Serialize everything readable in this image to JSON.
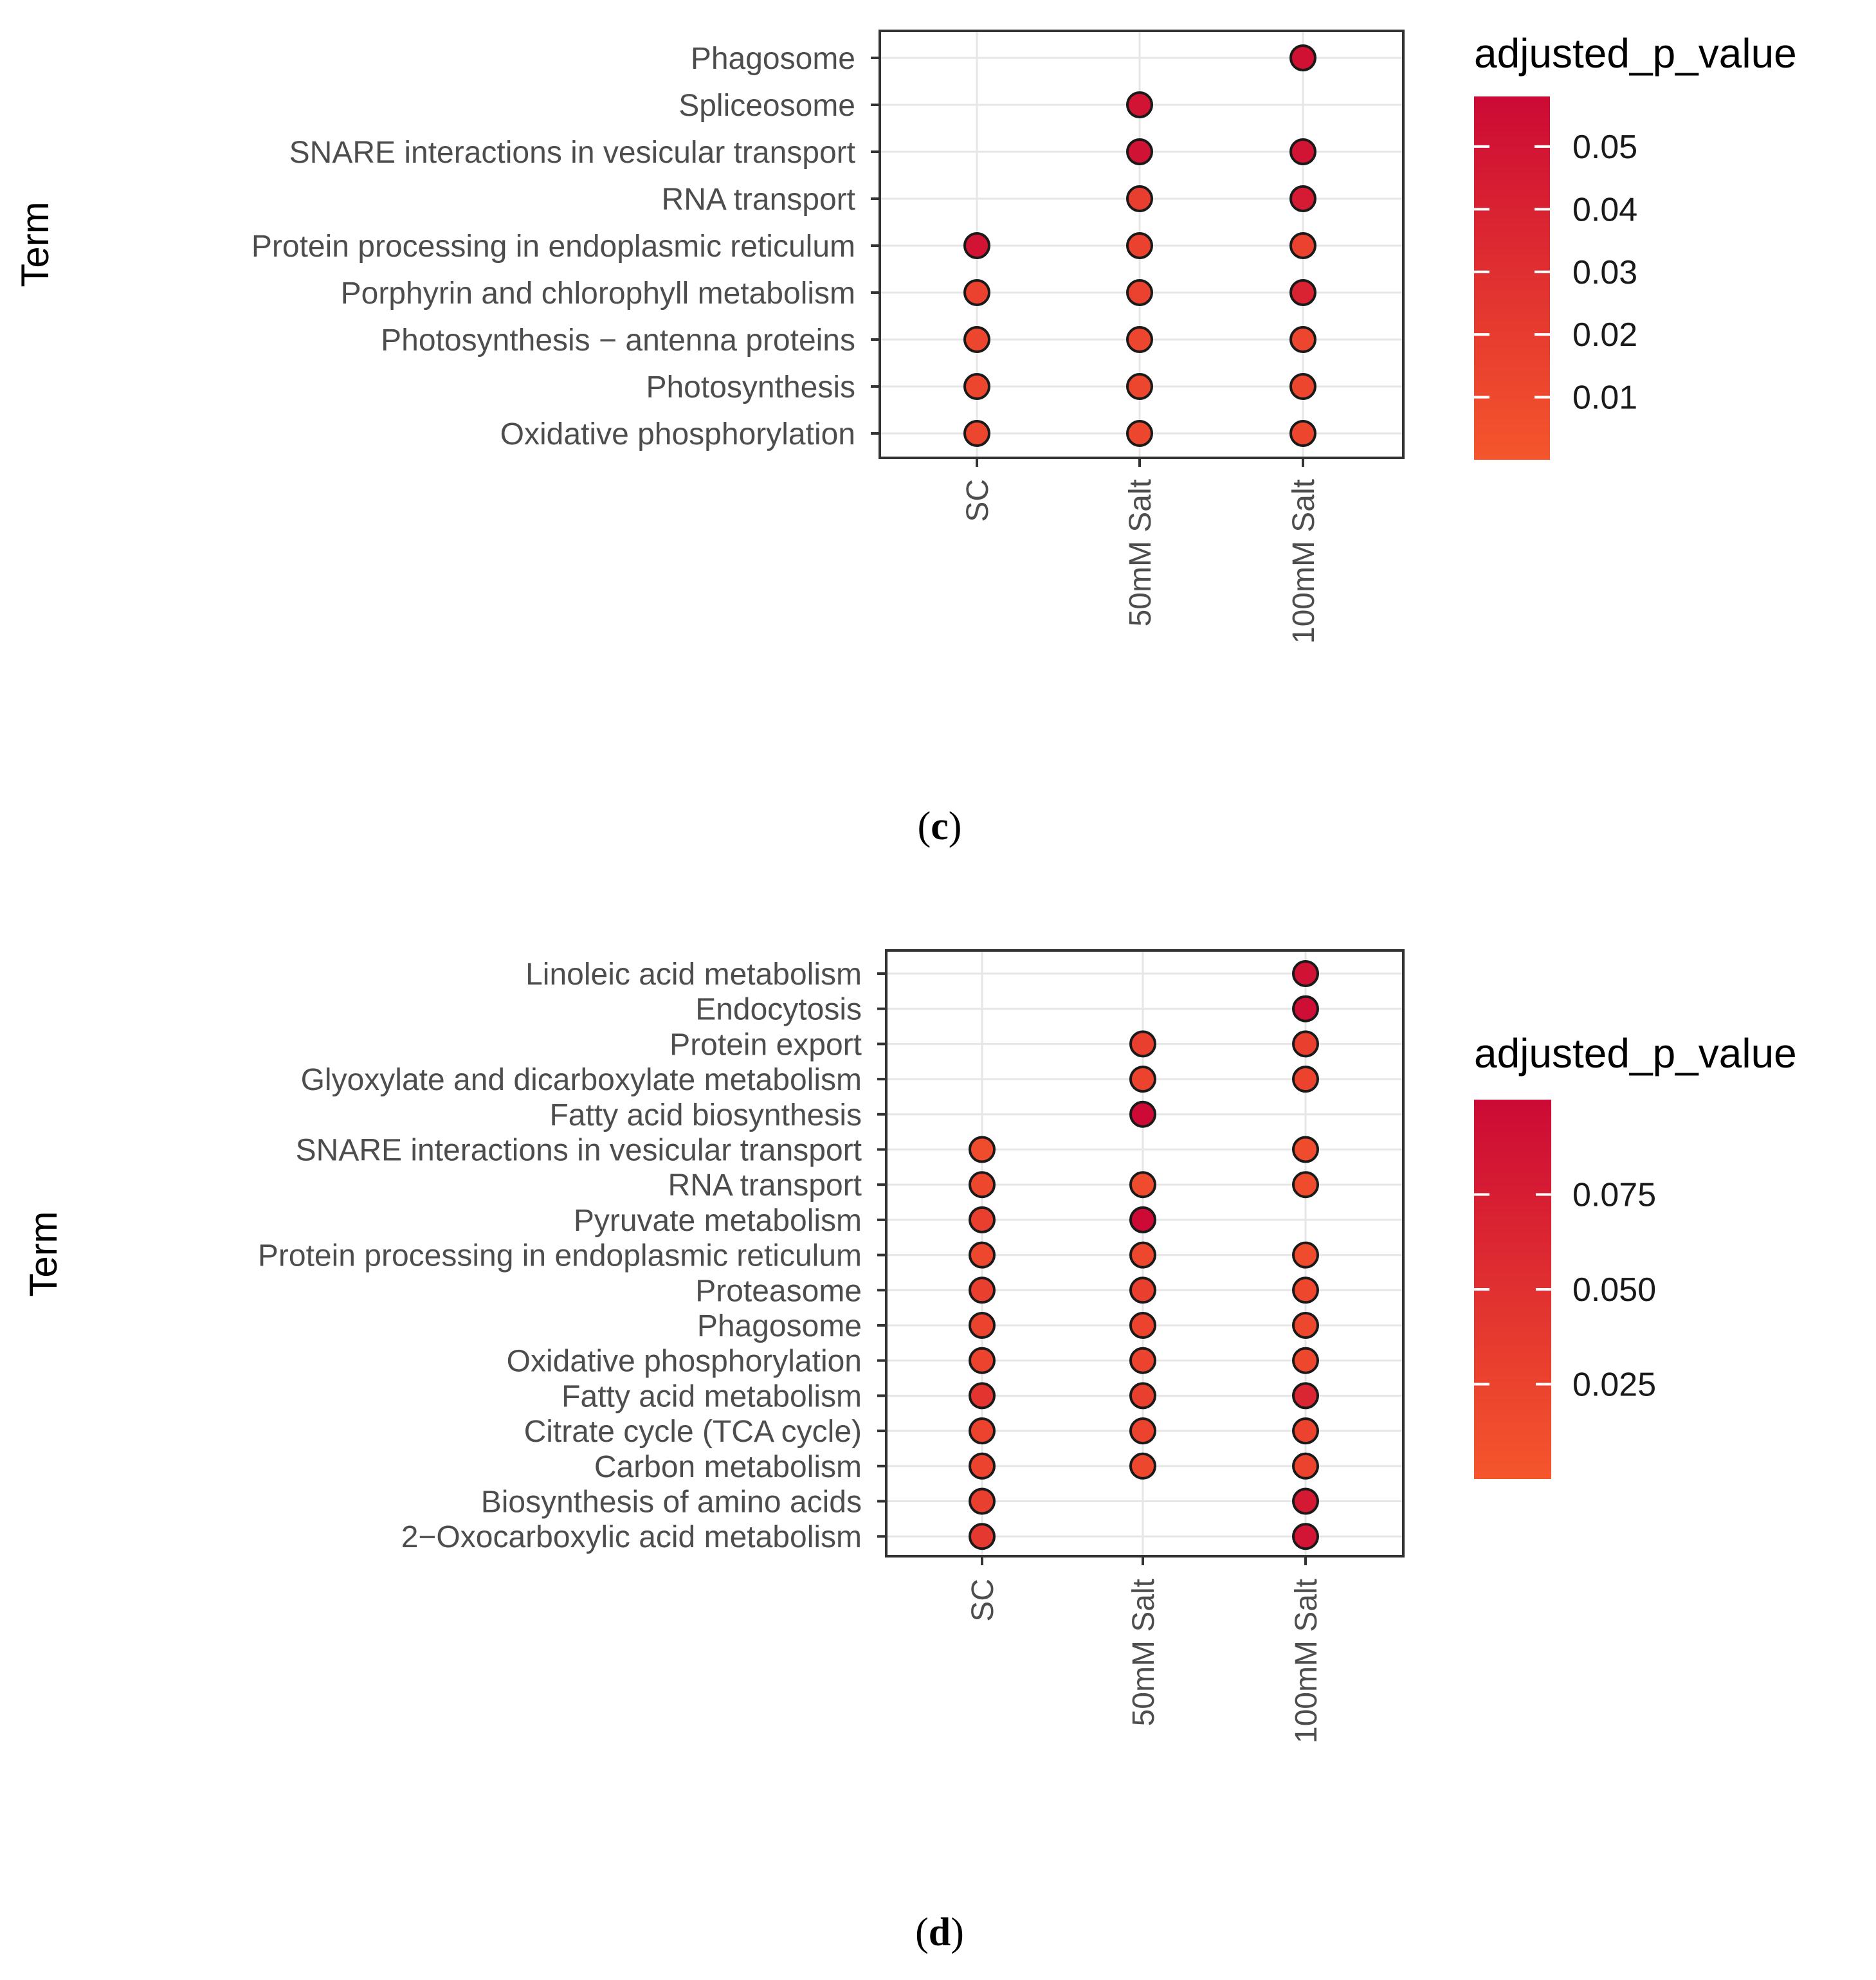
{
  "chart_data": [
    {
      "type": "scatter",
      "panel_label": "(c)",
      "panel_letter": "c",
      "ylabel": "Term",
      "categories_x": [
        "SC",
        "50mM Salt",
        "100mM Salt"
      ],
      "categories_y": [
        "Phagosome",
        "Spliceosome",
        "SNARE interactions in vesicular transport",
        "RNA transport",
        "Protein processing in endoplasmic reticulum",
        "Porphyrin and chlorophyll metabolism",
        "Photosynthesis − antenna proteins",
        "Photosynthesis",
        "Oxidative phosphorylation"
      ],
      "legend": {
        "title": "adjusted_p_value",
        "ticks": [
          0.05,
          0.04,
          0.03,
          0.02,
          0.01
        ],
        "tick_labels": [
          "0.05",
          "0.04",
          "0.03",
          "0.02",
          "0.01"
        ],
        "range": [
          0.0,
          0.058
        ],
        "color_low": "#f5562c",
        "color_high": "#cc0a35"
      },
      "points": [
        {
          "term": "Phagosome",
          "group": "100mM Salt",
          "p": 0.053
        },
        {
          "term": "Spliceosome",
          "group": "50mM Salt",
          "p": 0.05
        },
        {
          "term": "SNARE interactions in vesicular transport",
          "group": "50mM Salt",
          "p": 0.052
        },
        {
          "term": "SNARE interactions in vesicular transport",
          "group": "100mM Salt",
          "p": 0.05
        },
        {
          "term": "RNA transport",
          "group": "50mM Salt",
          "p": 0.018
        },
        {
          "term": "RNA transport",
          "group": "100mM Salt",
          "p": 0.045
        },
        {
          "term": "Protein processing in endoplasmic reticulum",
          "group": "SC",
          "p": 0.05
        },
        {
          "term": "Protein processing in endoplasmic reticulum",
          "group": "50mM Salt",
          "p": 0.015
        },
        {
          "term": "Protein processing in endoplasmic reticulum",
          "group": "100mM Salt",
          "p": 0.015
        },
        {
          "term": "Porphyrin and chlorophyll metabolism",
          "group": "SC",
          "p": 0.015
        },
        {
          "term": "Porphyrin and chlorophyll metabolism",
          "group": "50mM Salt",
          "p": 0.015
        },
        {
          "term": "Porphyrin and chlorophyll metabolism",
          "group": "100mM Salt",
          "p": 0.04
        },
        {
          "term": "Photosynthesis − antenna proteins",
          "group": "SC",
          "p": 0.012
        },
        {
          "term": "Photosynthesis − antenna proteins",
          "group": "50mM Salt",
          "p": 0.012
        },
        {
          "term": "Photosynthesis − antenna proteins",
          "group": "100mM Salt",
          "p": 0.012
        },
        {
          "term": "Photosynthesis",
          "group": "SC",
          "p": 0.012
        },
        {
          "term": "Photosynthesis",
          "group": "50mM Salt",
          "p": 0.012
        },
        {
          "term": "Photosynthesis",
          "group": "100mM Salt",
          "p": 0.012
        },
        {
          "term": "Oxidative phosphorylation",
          "group": "SC",
          "p": 0.012
        },
        {
          "term": "Oxidative phosphorylation",
          "group": "50mM Salt",
          "p": 0.012
        },
        {
          "term": "Oxidative phosphorylation",
          "group": "100mM Salt",
          "p": 0.012
        }
      ]
    },
    {
      "type": "scatter",
      "panel_label": "(d)",
      "panel_letter": "d",
      "ylabel": "Term",
      "categories_x": [
        "SC",
        "50mM Salt",
        "100mM Salt"
      ],
      "categories_y": [
        "Linoleic acid metabolism",
        "Endocytosis",
        "Protein export",
        "Glyoxylate and dicarboxylate metabolism",
        "Fatty acid biosynthesis",
        "SNARE interactions in vesicular transport",
        "RNA transport",
        "Pyruvate metabolism",
        "Protein processing in endoplasmic reticulum",
        "Proteasome",
        "Phagosome",
        "Oxidative phosphorylation",
        "Fatty acid metabolism",
        "Citrate cycle (TCA cycle)",
        "Carbon metabolism",
        "Biosynthesis of amino acids",
        "2−Oxocarboxylic acid metabolism"
      ],
      "legend": {
        "title": "adjusted_p_value",
        "ticks": [
          0.075,
          0.05,
          0.025
        ],
        "tick_labels": [
          "0.075",
          "0.050",
          "0.025"
        ],
        "range": [
          0.0,
          0.1
        ],
        "color_low": "#f5562c",
        "color_high": "#cc0a35"
      },
      "points": [
        {
          "term": "Linoleic acid metabolism",
          "group": "100mM Salt",
          "p": 0.09
        },
        {
          "term": "Endocytosis",
          "group": "100mM Salt",
          "p": 0.095
        },
        {
          "term": "Protein export",
          "group": "50mM Salt",
          "p": 0.03
        },
        {
          "term": "Protein export",
          "group": "100mM Salt",
          "p": 0.03
        },
        {
          "term": "Glyoxylate and dicarboxylate metabolism",
          "group": "50mM Salt",
          "p": 0.025
        },
        {
          "term": "Glyoxylate and dicarboxylate metabolism",
          "group": "100mM Salt",
          "p": 0.025
        },
        {
          "term": "Fatty acid biosynthesis",
          "group": "50mM Salt",
          "p": 0.1
        },
        {
          "term": "SNARE interactions in vesicular transport",
          "group": "SC",
          "p": 0.015
        },
        {
          "term": "SNARE interactions in vesicular transport",
          "group": "100mM Salt",
          "p": 0.015
        },
        {
          "term": "RNA transport",
          "group": "SC",
          "p": 0.02
        },
        {
          "term": "RNA transport",
          "group": "50mM Salt",
          "p": 0.015
        },
        {
          "term": "RNA transport",
          "group": "100mM Salt",
          "p": 0.015
        },
        {
          "term": "Pyruvate metabolism",
          "group": "SC",
          "p": 0.03
        },
        {
          "term": "Pyruvate metabolism",
          "group": "50mM Salt",
          "p": 0.1
        },
        {
          "term": "Protein processing in endoplasmic reticulum",
          "group": "SC",
          "p": 0.02
        },
        {
          "term": "Protein processing in endoplasmic reticulum",
          "group": "50mM Salt",
          "p": 0.02
        },
        {
          "term": "Protein processing in endoplasmic reticulum",
          "group": "100mM Salt",
          "p": 0.015
        },
        {
          "term": "Proteasome",
          "group": "SC",
          "p": 0.03
        },
        {
          "term": "Proteasome",
          "group": "50mM Salt",
          "p": 0.03
        },
        {
          "term": "Proteasome",
          "group": "100mM Salt",
          "p": 0.02
        },
        {
          "term": "Phagosome",
          "group": "SC",
          "p": 0.025
        },
        {
          "term": "Phagosome",
          "group": "50mM Salt",
          "p": 0.025
        },
        {
          "term": "Phagosome",
          "group": "100mM Salt",
          "p": 0.02
        },
        {
          "term": "Oxidative phosphorylation",
          "group": "SC",
          "p": 0.025
        },
        {
          "term": "Oxidative phosphorylation",
          "group": "50mM Salt",
          "p": 0.025
        },
        {
          "term": "Oxidative phosphorylation",
          "group": "100mM Salt",
          "p": 0.02
        },
        {
          "term": "Fatty acid metabolism",
          "group": "SC",
          "p": 0.045
        },
        {
          "term": "Fatty acid metabolism",
          "group": "50mM Salt",
          "p": 0.03
        },
        {
          "term": "Fatty acid metabolism",
          "group": "100mM Salt",
          "p": 0.065
        },
        {
          "term": "Citrate cycle (TCA cycle)",
          "group": "SC",
          "p": 0.025
        },
        {
          "term": "Citrate cycle (TCA cycle)",
          "group": "50mM Salt",
          "p": 0.025
        },
        {
          "term": "Citrate cycle (TCA cycle)",
          "group": "100mM Salt",
          "p": 0.025
        },
        {
          "term": "Carbon metabolism",
          "group": "SC",
          "p": 0.025
        },
        {
          "term": "Carbon metabolism",
          "group": "50mM Salt",
          "p": 0.02
        },
        {
          "term": "Carbon metabolism",
          "group": "100mM Salt",
          "p": 0.025
        },
        {
          "term": "Biosynthesis of amino acids",
          "group": "SC",
          "p": 0.03
        },
        {
          "term": "Biosynthesis of amino acids",
          "group": "100mM Salt",
          "p": 0.08
        },
        {
          "term": "2−Oxocarboxylic acid metabolism",
          "group": "SC",
          "p": 0.04
        },
        {
          "term": "2−Oxocarboxylic acid metabolism",
          "group": "100mM Salt",
          "p": 0.085
        }
      ]
    }
  ]
}
